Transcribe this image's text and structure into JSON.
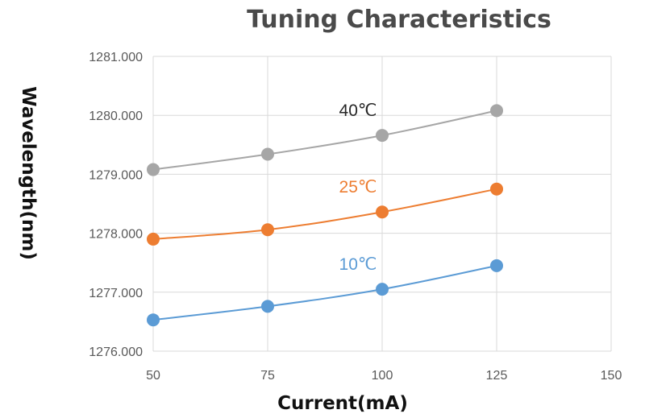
{
  "chart_data": {
    "type": "line",
    "title": "Tuning Characteristics",
    "xlabel": "Current(mA)",
    "ylabel": "Wavelength(nm)",
    "xlim": [
      50,
      150
    ],
    "ylim": [
      1276,
      1281
    ],
    "xticks": [
      "50",
      "75",
      "100",
      "125",
      "150"
    ],
    "yticks": [
      "1276.000",
      "1277.000",
      "1278.000",
      "1279.000",
      "1280.000",
      "1281.000"
    ],
    "grid": true,
    "x": [
      50,
      75,
      100,
      125
    ],
    "series": [
      {
        "name": "40℃",
        "color": "#a6a6a6",
        "values": [
          1279.08,
          1279.34,
          1279.66,
          1280.08
        ]
      },
      {
        "name": "25℃",
        "color": "#ed7d31",
        "values": [
          1277.9,
          1278.06,
          1278.36,
          1278.75
        ]
      },
      {
        "name": "10℃",
        "color": "#5b9bd5",
        "values": [
          1276.53,
          1276.76,
          1277.05,
          1277.45
        ]
      }
    ]
  }
}
